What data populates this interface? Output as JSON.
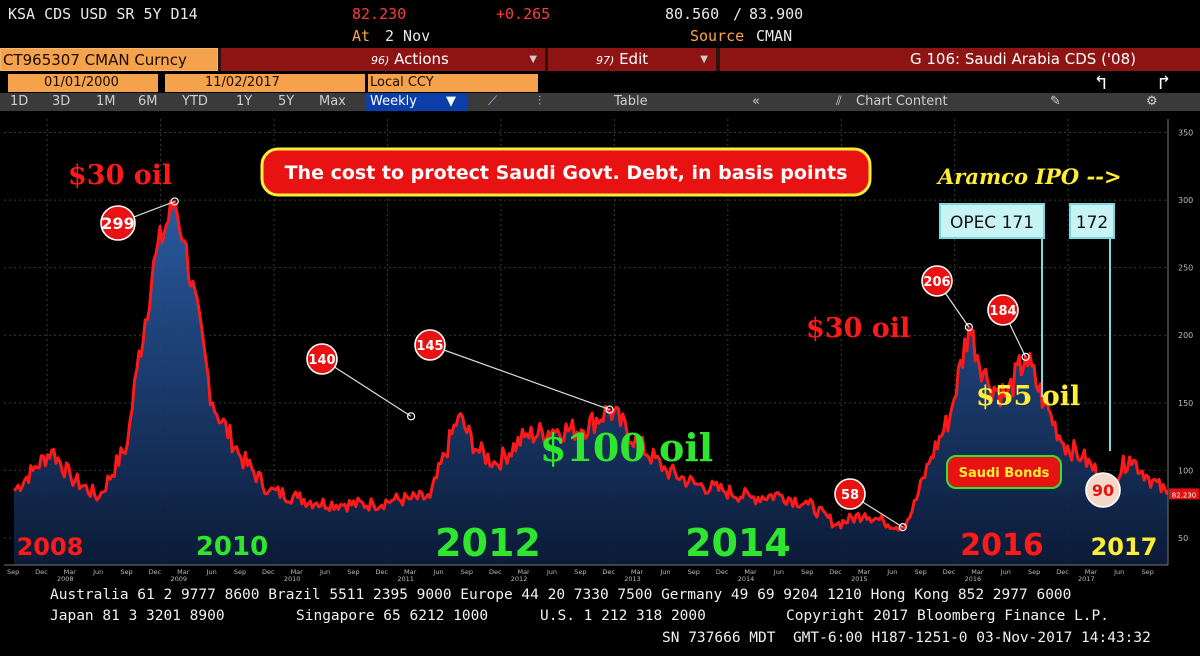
{
  "header": {
    "ticker": "KSA CDS USD SR 5Y D14",
    "price": "82.230",
    "change": "+0.265",
    "range_low": "80.560",
    "range_sep": "/",
    "range_high": "83.900",
    "at_label": "At",
    "at_date": "2 Nov",
    "source_label": "Source",
    "source_value": "CMAN"
  },
  "command_bar": {
    "security": "CT965307 CMAN Curncy",
    "actions_key": "96)",
    "actions_label": "Actions",
    "edit_key": "97)",
    "edit_label": "Edit",
    "graph_title": "G 106: Saudi Arabia CDS ('08)"
  },
  "date_row": {
    "start_date": "01/01/2000",
    "end_date": "11/02/2017",
    "currency": "Local CCY"
  },
  "toolbar": {
    "ranges": [
      "1D",
      "3D",
      "1M",
      "6M",
      "YTD",
      "1Y",
      "5Y",
      "Max"
    ],
    "frequency": "Weekly",
    "table_label": "Table",
    "chart_content_label": "Chart Content"
  },
  "chart_data": {
    "type": "area",
    "series": [
      {
        "x": [
          "2007-09",
          "2007-11",
          "2008-01",
          "2008-03",
          "2008-06",
          "2008-09",
          "2008-10",
          "2008-12",
          "2009-02",
          "2009-03",
          "2009-06",
          "2009-09",
          "2009-12",
          "2010-03",
          "2010-05",
          "2010-08",
          "2010-11",
          "2011-01",
          "2011-03",
          "2011-05",
          "2011-08",
          "2011-10",
          "2011-12",
          "2012-03",
          "2012-06",
          "2012-09",
          "2012-12",
          "2013-03",
          "2013-06",
          "2013-09",
          "2013-12",
          "2014-03",
          "2014-06",
          "2014-09",
          "2014-12",
          "2015-03",
          "2015-05",
          "2015-07",
          "2015-08",
          "2015-10",
          "2015-12",
          "2016-02",
          "2016-04",
          "2016-06",
          "2016-08",
          "2016-10",
          "2016-12",
          "2017-02",
          "2017-04",
          "2017-05",
          "2017-07",
          "2017-09",
          "2017-11"
        ],
        "values": [
          85,
          100,
          115,
          95,
          80,
          120,
          175,
          260,
          299,
          270,
          150,
          110,
          85,
          80,
          76,
          75,
          75,
          78,
          79,
          80,
          140,
          115,
          105,
          125,
          130,
          130,
          145,
          120,
          100,
          90,
          85,
          80,
          82,
          75,
          60,
          68,
          62,
          58,
          70,
          110,
          140,
          206,
          165,
          155,
          184,
          150,
          120,
          110,
          95,
          90,
          110,
          95,
          82.23
        ]
      }
    ],
    "ylim": [
      30,
      360
    ],
    "y_ticks": [
      50,
      100,
      150,
      200,
      250,
      300,
      350
    ],
    "x_year_ticks": [
      {
        "label": "2008",
        "year": "2008"
      },
      {
        "label": "2009",
        "year": "2009"
      },
      {
        "label": "2010",
        "year": "2010"
      },
      {
        "label": "2011",
        "year": "2011"
      },
      {
        "label": "2012",
        "year": "2012"
      },
      {
        "label": "2013",
        "year": "2013"
      },
      {
        "label": "2014",
        "year": "2014"
      },
      {
        "label": "2015",
        "year": "2015"
      },
      {
        "label": "2016",
        "year": "2016"
      },
      {
        "label": "2017",
        "year": "2017"
      }
    ],
    "x_month_labels": [
      "Sep",
      "Dec",
      "Mar",
      "Jun",
      "Sep",
      "Dec",
      "Mar",
      "Jun",
      "Sep",
      "Dec",
      "Mar",
      "Jun",
      "Sep",
      "Dec",
      "Mar",
      "Jun",
      "Sep",
      "Dec",
      "Mar",
      "Jun",
      "Sep",
      "Dec",
      "Mar",
      "Jun",
      "Sep",
      "Dec",
      "Mar",
      "Jun",
      "Sep",
      "Dec",
      "Mar",
      "Jun",
      "Sep",
      "Dec",
      "Mar",
      "Jun",
      "Sep",
      "Dec",
      "Mar",
      "Jun",
      "Sep"
    ],
    "last_value_label": "82.230",
    "grid": true,
    "line_color": "#ff1a1a",
    "fill_color": "#1d4a8a",
    "background_color": "#000000"
  },
  "annotations": {
    "headline": "The cost to protect Saudi Govt. Debt, in basis points",
    "oil_30_left": "$30 oil",
    "oil_30_right": "$30 oil",
    "oil_100": "$100 oil",
    "oil_55": "$55 oil",
    "aramco": "Aramco IPO -->",
    "opec_box": "OPEC 171",
    "box_172": "172",
    "saudi_bonds": "Saudi Bonds",
    "bubbles": [
      {
        "label": "299",
        "date": "2009-02",
        "value": 299
      },
      {
        "label": "140",
        "date": "2011-03",
        "value": 140
      },
      {
        "label": "145",
        "date": "2012-12",
        "value": 145
      },
      {
        "label": "58",
        "date": "2015-07",
        "value": 58
      },
      {
        "label": "206",
        "date": "2016-02",
        "value": 206
      },
      {
        "label": "184",
        "date": "2016-08",
        "value": 184
      },
      {
        "label": "90",
        "date": "2017-05",
        "value": 90
      }
    ],
    "year_labels": [
      {
        "text": "2008",
        "color": "#ff1a1a"
      },
      {
        "text": "2010",
        "color": "#2ee62e"
      },
      {
        "text": "2012",
        "color": "#2ee62e"
      },
      {
        "text": "2014",
        "color": "#2ee62e"
      },
      {
        "text": "2016",
        "color": "#ff1a1a"
      },
      {
        "text": "2017",
        "color": "#ffee33"
      }
    ]
  },
  "footer": {
    "line1": "Australia 61 2 9777 8600 Brazil 5511 2395 9000 Europe 44 20 7330 7500 Germany 49 69 9204 1210 Hong Kong 852 2977 6000",
    "line2a": "Japan 81 3 3201 8900",
    "line2b": "Singapore 65 6212 1000",
    "line2c": "U.S. 1 212 318 2000",
    "line2d": "Copyright 2017 Bloomberg Finance L.P.",
    "line3": "SN 737666 MDT  GMT-6:00 H187-1251-0 03-Nov-2017 14:43:32"
  }
}
